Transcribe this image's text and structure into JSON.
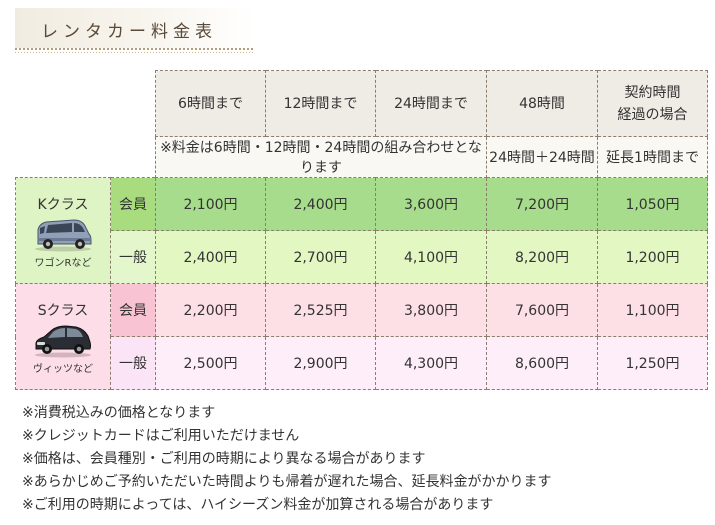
{
  "title": "レンタカー料金表",
  "header": {
    "columns": [
      "6時間まで",
      "12時間まで",
      "24時間まで",
      "48時間",
      "契約時間\n経過の場合"
    ],
    "contract_line1": "契約時間",
    "contract_line2": "経過の場合",
    "sub_note_combined": "※料金は6時間・12時間・24時間の組み合わせとなります",
    "sub_note_48": "24時間＋24時間",
    "sub_note_extend": "延長1時間まで"
  },
  "classes": [
    {
      "name": "Kクラス",
      "example": "ワゴンRなど",
      "car_icon": "minivan-car-icon",
      "rows": [
        {
          "type": "会員",
          "prices": [
            "2,100円",
            "2,400円",
            "3,600円",
            "7,200円",
            "1,050円"
          ]
        },
        {
          "type": "一般",
          "prices": [
            "2,400円",
            "2,700円",
            "4,100円",
            "8,200円",
            "1,200円"
          ]
        }
      ]
    },
    {
      "name": "Sクラス",
      "example": "ヴィッツなど",
      "car_icon": "hatchback-car-icon",
      "rows": [
        {
          "type": "会員",
          "prices": [
            "2,200円",
            "2,525円",
            "3,800円",
            "7,600円",
            "1,100円"
          ]
        },
        {
          "type": "一般",
          "prices": [
            "2,500円",
            "2,900円",
            "4,300円",
            "8,600円",
            "1,250円"
          ]
        }
      ]
    }
  ],
  "notes": [
    "※消費税込みの価格となります",
    "※クレジットカードはご利用いただけません",
    "※価格は、会員種別・ご利用の時期により異なる場合があります",
    "※あらかじめご予約いただいた時間よりも帰着が遅れた場合、延長料金がかかります",
    "※ご利用の時期によっては、ハイシーズン料金が加算される場合があります"
  ],
  "colors": {
    "member_k": "#a9db7f",
    "general_k": "#e4f6cc",
    "member_s": "#f8c4d3",
    "general_s": "#fbe4f5",
    "header_bg": "#efebe5"
  }
}
